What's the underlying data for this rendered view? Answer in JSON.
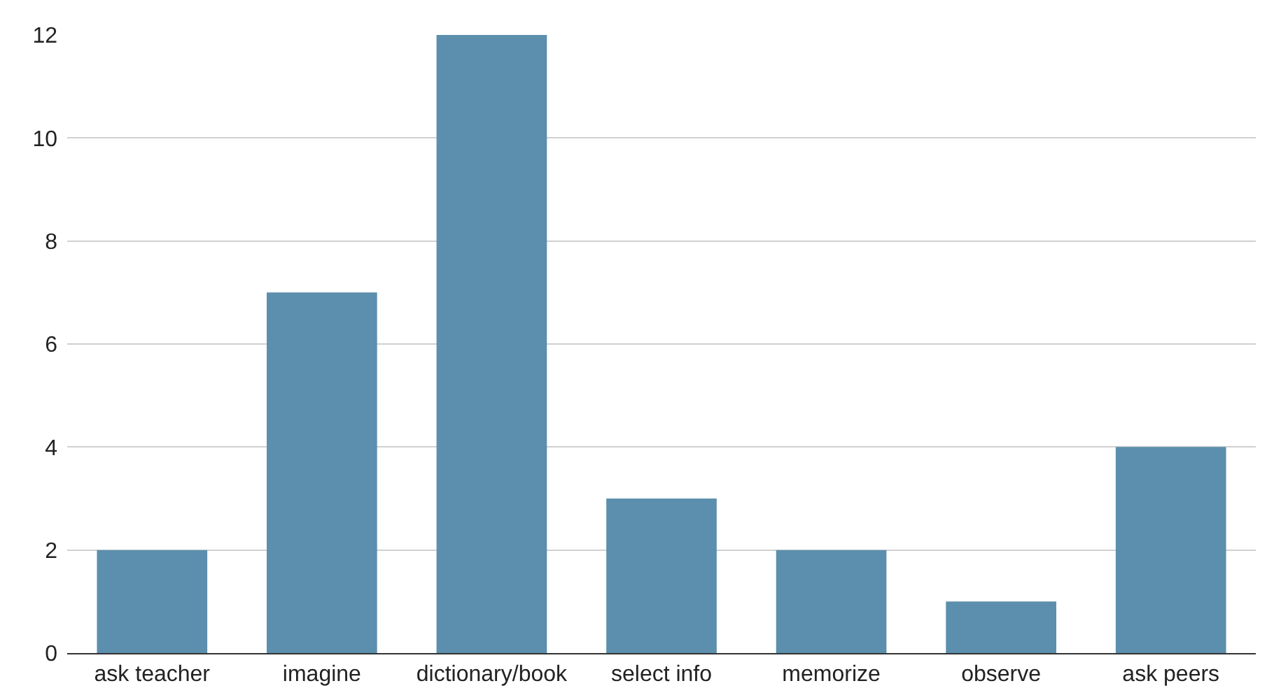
{
  "chart_data": {
    "type": "bar",
    "categories": [
      "ask teacher",
      "imagine",
      "dictionary/book",
      "select info",
      "memorize",
      "observe",
      "ask peers"
    ],
    "values": [
      2,
      7,
      12,
      3,
      2,
      1,
      4
    ],
    "color": "#5b8fad",
    "ylim": [
      0,
      12
    ],
    "yticks": [
      0,
      2,
      4,
      6,
      8,
      10,
      12
    ],
    "grid": "y"
  }
}
